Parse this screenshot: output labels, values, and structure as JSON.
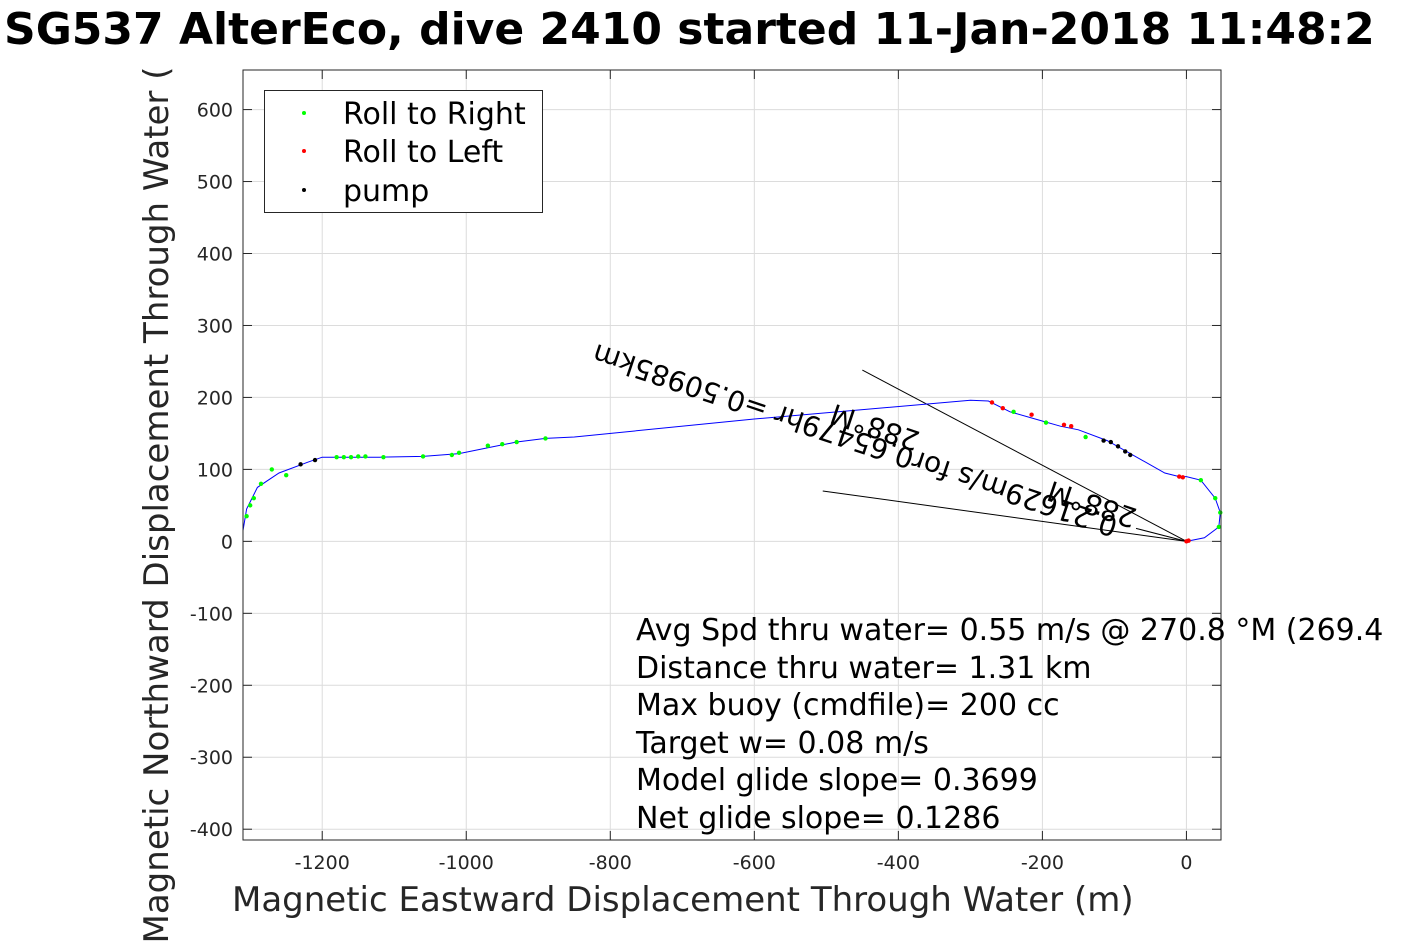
{
  "chart_data": {
    "type": "line",
    "title": "SG537 AlterEco, dive 2410 started 11-Jan-2018 11:48:2",
    "xlabel": "Magnetic Eastward Displacement Through Water (m)",
    "ylabel": "Magnetic Northward Displacement Through Water (",
    "xlim": [
      -1310,
      48
    ],
    "ylim": [
      -415,
      655
    ],
    "xticks": [
      -1200,
      -1000,
      -800,
      -600,
      -400,
      -200,
      0
    ],
    "yticks": [
      -400,
      -300,
      -200,
      -100,
      0,
      100,
      200,
      300,
      400,
      500,
      600
    ],
    "grid": true,
    "legend_position": "top-left",
    "legend": [
      "Roll to Right",
      "Roll to Left",
      "pump"
    ],
    "series": [
      {
        "kind": "track",
        "x": [
          0,
          25,
          45,
          47,
          40,
          20,
          0,
          -10,
          -30,
          -110,
          -150,
          -175,
          -210,
          -245,
          -275,
          -300,
          -600,
          -850,
          -890,
          -930,
          -970,
          -1010,
          -1060,
          -1120,
          -1170,
          -1200,
          -1220,
          -1260,
          -1290,
          -1305,
          -1310
        ],
        "y": [
          0,
          5,
          20,
          40,
          60,
          85,
          90,
          90,
          95,
          140,
          155,
          160,
          170,
          180,
          195,
          196,
          170,
          145,
          143,
          138,
          130,
          122,
          118,
          117,
          117,
          117,
          110,
          95,
          75,
          45,
          15
        ]
      },
      {
        "name": "Roll to Right",
        "x": [
          45,
          47,
          40,
          20,
          -240,
          -195,
          -140,
          -1180,
          -1170,
          -1160,
          -1150,
          -1140,
          -1115,
          -1060,
          -1020,
          -1010,
          -970,
          -950,
          -930,
          -890,
          -1250,
          -1270,
          -1285,
          -1295,
          -1300,
          -1305
        ],
        "y": [
          20,
          40,
          60,
          85,
          180,
          165,
          145,
          117,
          117,
          117,
          118,
          118,
          117,
          118,
          120,
          123,
          133,
          135,
          138,
          143,
          92,
          100,
          80,
          60,
          50,
          35
        ]
      },
      {
        "name": "Roll to Left",
        "x": [
          -270,
          -255,
          -215,
          -170,
          -160,
          -10,
          -5,
          0,
          3
        ],
        "y": [
          193,
          185,
          176,
          162,
          160,
          90,
          89,
          0,
          1
        ]
      },
      {
        "name": "pump",
        "x": [
          -115,
          -105,
          -95,
          -85,
          -78,
          -1230,
          -1210
        ],
        "y": [
          140,
          138,
          132,
          125,
          120,
          107,
          113
        ]
      },
      {
        "kind": "current-lines",
        "x": [
          -450,
          0,
          -505,
          0,
          -70,
          0
        ],
        "y": [
          238,
          0,
          70,
          0,
          18,
          0
        ]
      }
    ],
    "annotations": [
      "0.21629m/s for0.65479hr =0.50985km",
      "288°M",
      "288°M"
    ]
  },
  "stats": [
    "Avg Spd thru water=  0.55 m/s @ 270.8 °M (269.4",
    "Distance thru water=  1.31 km",
    "Max buoy (cmdfile)= 200 cc",
    "Target w= 0.08 m/s",
    "Model glide slope= 0.3699",
    "Net glide slope= 0.1286"
  ],
  "colors": {
    "track": "#0000ff",
    "roll_right": "#00ff00",
    "roll_left": "#ff0000",
    "pump": "#000000",
    "current_lines": "#000000",
    "text": "#000000",
    "axis": "#262626",
    "grid": "#dcdcdc"
  }
}
